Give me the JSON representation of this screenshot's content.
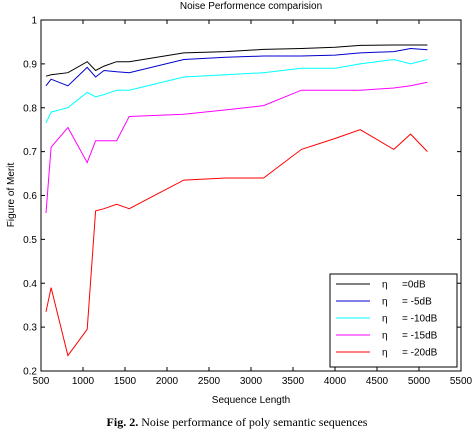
{
  "chart_data": {
    "type": "line",
    "title": "Noise Performence comparision",
    "xlabel": "Sequence Length",
    "ylabel": "Figure of Merit",
    "xlim": [
      500,
      5500
    ],
    "ylim": [
      0.2,
      1.0
    ],
    "xticks": [
      "500",
      "1000",
      "1500",
      "2000",
      "2500",
      "3000",
      "3500",
      "4000",
      "4500",
      "5000",
      "5500"
    ],
    "yticks": [
      "0.2",
      "0.3",
      "0.4",
      "0.5",
      "0.6",
      "0.7",
      "0.8",
      "0.9",
      "1"
    ],
    "grid": false,
    "legend_position": "bottom-right",
    "legend_symbol": "η",
    "series": [
      {
        "name": "=0dB",
        "color": "#000000",
        "x": [
          560,
          620,
          820,
          1050,
          1150,
          1250,
          1400,
          1550,
          2200,
          2700,
          3150,
          3600,
          4000,
          4300,
          4700,
          5100
        ],
        "y": [
          0.872,
          0.875,
          0.88,
          0.905,
          0.885,
          0.895,
          0.905,
          0.905,
          0.925,
          0.928,
          0.933,
          0.935,
          0.938,
          0.942,
          0.943,
          0.943
        ]
      },
      {
        "name": "= -5dB",
        "color": "#0000cc",
        "x": [
          560,
          620,
          820,
          1050,
          1150,
          1250,
          1400,
          1550,
          2200,
          2700,
          3150,
          3600,
          4000,
          4300,
          4700,
          4900,
          5100
        ],
        "y": [
          0.85,
          0.865,
          0.85,
          0.892,
          0.87,
          0.885,
          0.882,
          0.88,
          0.91,
          0.915,
          0.918,
          0.918,
          0.92,
          0.925,
          0.928,
          0.935,
          0.932
        ]
      },
      {
        "name": "= -10dB",
        "color": "#00ffff",
        "x": [
          560,
          620,
          820,
          1050,
          1150,
          1250,
          1400,
          1550,
          2200,
          2700,
          3150,
          3600,
          4000,
          4300,
          4700,
          4900,
          5100
        ],
        "y": [
          0.765,
          0.79,
          0.8,
          0.835,
          0.825,
          0.83,
          0.84,
          0.84,
          0.87,
          0.875,
          0.88,
          0.89,
          0.89,
          0.9,
          0.91,
          0.9,
          0.91
        ]
      },
      {
        "name": "= -15dB",
        "color": "#ff00ff",
        "x": [
          560,
          620,
          820,
          1050,
          1150,
          1250,
          1400,
          1550,
          2200,
          2700,
          3150,
          3600,
          4000,
          4300,
          4700,
          4900,
          5100
        ],
        "y": [
          0.56,
          0.71,
          0.755,
          0.675,
          0.725,
          0.725,
          0.725,
          0.78,
          0.785,
          0.795,
          0.805,
          0.84,
          0.84,
          0.84,
          0.845,
          0.85,
          0.858
        ]
      },
      {
        "name": "= -20dB",
        "color": "#ff0000",
        "x": [
          560,
          620,
          820,
          1050,
          1150,
          1250,
          1400,
          1550,
          2200,
          2700,
          3150,
          3600,
          4000,
          4300,
          4700,
          4900,
          5100
        ],
        "y": [
          0.335,
          0.39,
          0.235,
          0.295,
          0.565,
          0.57,
          0.58,
          0.57,
          0.635,
          0.64,
          0.64,
          0.705,
          0.73,
          0.75,
          0.705,
          0.74,
          0.7
        ]
      }
    ]
  },
  "caption": {
    "label": "Fig. 2.",
    "text": "Noise performance of poly semantic sequences"
  }
}
